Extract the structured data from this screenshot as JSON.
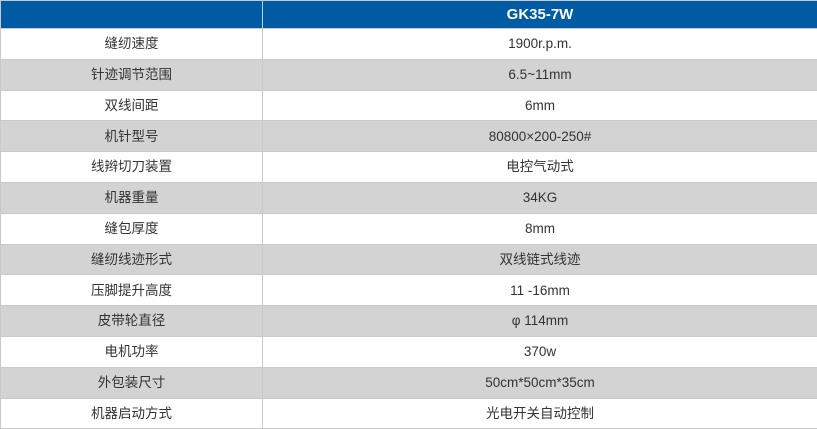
{
  "table": {
    "header": {
      "label_col": "",
      "value_col": "GK35-7W"
    },
    "rows": [
      {
        "label": "缝纫速度",
        "value": "1900r.p.m."
      },
      {
        "label": "针迹调节范围",
        "value": "6.5~11mm"
      },
      {
        "label": "双线间距",
        "value": "6mm"
      },
      {
        "label": "机针型号",
        "value": "80800×200-250#"
      },
      {
        "label": "线辫切刀装置",
        "value": "电控气动式"
      },
      {
        "label": "机器重量",
        "value": "34KG"
      },
      {
        "label": "缝包厚度",
        "value": "8mm"
      },
      {
        "label": "缝纫线迹形式",
        "value": "双线链式线迹"
      },
      {
        "label": "压脚提升高度",
        "value": "11 -16mm"
      },
      {
        "label": "皮带轮直径",
        "value": "φ 114mm"
      },
      {
        "label": "电机功率",
        "value": "370w"
      },
      {
        "label": "外包装尺寸",
        "value": "50cm*50cm*35cm"
      },
      {
        "label": "机器启动方式",
        "value": "光电开关自动控制"
      }
    ],
    "colors": {
      "header_bg": "#005BA5",
      "header_text": "#FFFFFF",
      "row_bg": "#FFFFFF",
      "row_alt_bg": "#D3D3D3",
      "border": "#C9C9C9",
      "text": "#333333"
    }
  }
}
